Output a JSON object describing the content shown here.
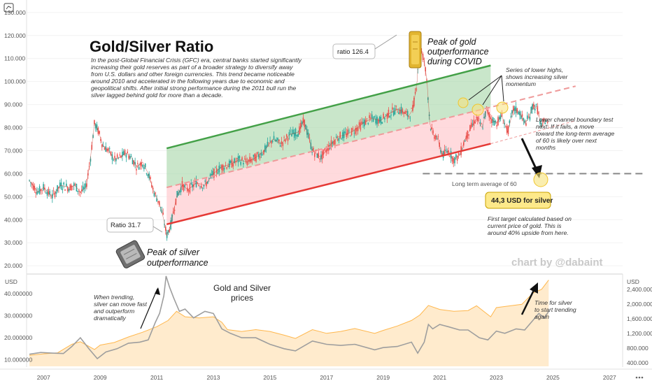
{
  "chart_data": [
    {
      "type": "line",
      "title": "Gold/Silver Ratio",
      "subtitle": "In the post-Global Financial Crisis (GFC) era, central banks started significantly increasing their gold reserves as part of a broader strategy to diversify away from U.S. dollars and other foreign currencies. This trend became noticeable around 2010 and accelerated in the following years due to economic and geopolitical shifts. After initial strong performance during the 2011 bull run the silver lagged behind gold for more than a decade.",
      "subtitle_lines": [
        "In the post-Global Financial Crisis (GFC) era, central banks started significantly",
        "increasing their gold reserves as part of a broader strategy to diversify away",
        "from U.S. dollars and other foreign currencies. This trend became noticeable",
        "around 2010 and accelerated in the following years due to economic and",
        "geopolitical shifts. After initial strong performance during the 2011 bull run the",
        "silver lagged behind gold for more than a decade."
      ],
      "yticks": [
        "130.000",
        "120.000",
        "110.000",
        "100.000",
        "90.000",
        "80.000",
        "70.000",
        "60.000",
        "50.000",
        "40.000",
        "30.000",
        "20.000"
      ],
      "ylim": [
        17,
        133
      ],
      "xlim": [
        2006.4,
        2028.5
      ],
      "x": [
        2006.5,
        2006.8,
        2007.0,
        2007.3,
        2007.6,
        2007.9,
        2008.1,
        2008.3,
        2008.5,
        2008.65,
        2008.8,
        2008.95,
        2009.1,
        2009.3,
        2009.5,
        2009.7,
        2009.9,
        2010.1,
        2010.3,
        2010.5,
        2010.7,
        2010.9,
        2011.1,
        2011.25,
        2011.35,
        2011.5,
        2011.7,
        2011.9,
        2012.1,
        2012.4,
        2012.7,
        2013.0,
        2013.3,
        2013.6,
        2013.9,
        2014.2,
        2014.5,
        2014.8,
        2015.1,
        2015.4,
        2015.7,
        2016.0,
        2016.2,
        2016.5,
        2016.8,
        2017.1,
        2017.4,
        2017.7,
        2018.0,
        2018.3,
        2018.6,
        2018.9,
        2019.2,
        2019.5,
        2019.7,
        2019.9,
        2020.05,
        2020.2,
        2020.28,
        2020.35,
        2020.45,
        2020.55,
        2020.65,
        2020.75,
        2020.9,
        2021.1,
        2021.3,
        2021.5,
        2021.7,
        2021.9,
        2022.1,
        2022.3,
        2022.5,
        2022.65,
        2022.8,
        2023.0,
        2023.2,
        2023.4,
        2023.6,
        2023.8,
        2024.0,
        2024.15,
        2024.3,
        2024.45,
        2024.6,
        2024.75,
        2024.85
      ],
      "y": [
        57,
        52,
        54,
        50,
        55,
        54,
        55,
        52,
        54,
        66,
        82,
        78,
        72,
        70,
        66,
        67,
        69,
        67,
        63,
        65,
        60,
        52,
        47,
        40,
        33,
        38,
        50,
        55,
        53,
        56,
        55,
        60,
        63,
        64,
        66,
        65,
        67,
        70,
        75,
        73,
        77,
        78,
        83,
        70,
        67,
        72,
        76,
        77,
        79,
        82,
        84,
        83,
        86,
        88,
        87,
        85,
        88,
        100,
        120,
        113,
        109,
        100,
        82,
        77,
        76,
        68,
        70,
        66,
        68,
        75,
        80,
        84,
        80,
        88,
        84,
        82,
        85,
        78,
        88,
        87,
        82,
        84,
        90,
        88,
        80,
        84,
        80
      ],
      "channel": {
        "upper": {
          "from": [
            2011.35,
            71
          ],
          "to": [
            2022.8,
            107
          ]
        },
        "mid": {
          "from": [
            2011.35,
            54
          ],
          "to": [
            2025.8,
            98
          ]
        },
        "lower": {
          "from": [
            2011.35,
            38
          ],
          "to": [
            2022.8,
            73
          ]
        },
        "lower_extension": {
          "from": [
            2022.8,
            73
          ],
          "to": [
            2025.8,
            83
          ]
        }
      },
      "reference_line": {
        "y": 60,
        "label": "Long term average of 60"
      },
      "annotations": {
        "ratio_low": "Ratio 31.7",
        "ratio_high": "ratio 126.4",
        "peak_gold_1": "Peak of gold",
        "peak_gold_2": "outperformance",
        "peak_gold_3": "during COVID",
        "peak_silver_1": "Peak of silver",
        "peak_silver_2": "outperformance",
        "lower_highs_1": "Series of lower highs,",
        "lower_highs_2": "shows increasing silver",
        "lower_highs_3": "momentum",
        "lower_test_1": "Lower channel boundary test",
        "lower_test_2": "next. If it fails, a move",
        "lower_test_3": "toward the long-term average",
        "lower_test_4": "of 60 is likely over next",
        "lower_test_5": "months",
        "silver_target": "44,3 USD for silver",
        "first_target_1": "First target calculated based on",
        "first_target_2": "current price of gold. This is",
        "first_target_3": "around 40% upside from here.",
        "credit": "chart by @dabaint"
      }
    },
    {
      "type": "area",
      "title": "Gold and Silver",
      "title_line2": "prices",
      "left_axis_label": "USD",
      "right_axis_label": "USD",
      "left_ticks": [
        "40.000000",
        "30.000000",
        "20.000000",
        "10.000000"
      ],
      "right_ticks": [
        "2,400.000",
        "2,000.000",
        "1,600.000",
        "1,200.000",
        "800.000",
        "400.000"
      ],
      "xticks": [
        "2007",
        "2009",
        "2011",
        "2013",
        "2015",
        "2017",
        "2019",
        "2021",
        "2023",
        "2025",
        "2027"
      ],
      "xlim": [
        2006.4,
        2028.5
      ],
      "series": [
        {
          "name": "Gold",
          "axis": "right",
          "x": [
            2006.5,
            2007.0,
            2007.5,
            2008.0,
            2008.3,
            2008.8,
            2009.0,
            2009.5,
            2010.0,
            2010.5,
            2011.0,
            2011.4,
            2011.7,
            2012.0,
            2012.5,
            2013.0,
            2013.3,
            2013.5,
            2014.0,
            2014.5,
            2015.0,
            2015.5,
            2015.9,
            2016.5,
            2017.0,
            2017.5,
            2018.0,
            2018.7,
            2019.0,
            2019.5,
            2020.0,
            2020.3,
            2020.6,
            2021.0,
            2021.5,
            2022.0,
            2022.3,
            2022.8,
            2023.0,
            2023.5,
            2023.9,
            2024.3,
            2024.6,
            2024.85
          ],
          "y": [
            600,
            640,
            670,
            900,
            970,
            760,
            880,
            950,
            1100,
            1230,
            1380,
            1550,
            1800,
            1650,
            1620,
            1650,
            1500,
            1300,
            1250,
            1300,
            1250,
            1150,
            1060,
            1300,
            1200,
            1250,
            1330,
            1200,
            1280,
            1400,
            1550,
            1700,
            1960,
            1850,
            1800,
            1820,
            1950,
            1650,
            1900,
            1950,
            1990,
            2300,
            2400,
            2650
          ]
        },
        {
          "name": "Silver",
          "axis": "left",
          "x": [
            2006.5,
            2006.9,
            2007.3,
            2007.7,
            2008.0,
            2008.3,
            2008.6,
            2008.9,
            2009.2,
            2009.6,
            2010.0,
            2010.4,
            2010.7,
            2010.95,
            2011.1,
            2011.25,
            2011.33,
            2011.45,
            2011.6,
            2011.8,
            2012.0,
            2012.3,
            2012.7,
            2013.0,
            2013.3,
            2013.6,
            2014.0,
            2014.5,
            2015.0,
            2015.5,
            2015.9,
            2016.5,
            2017.0,
            2017.5,
            2018.0,
            2018.7,
            2019.0,
            2019.5,
            2020.0,
            2020.22,
            2020.45,
            2020.6,
            2020.75,
            2021.0,
            2021.3,
            2021.7,
            2022.0,
            2022.4,
            2022.7,
            2023.0,
            2023.3,
            2023.7,
            2024.0,
            2024.3,
            2024.5,
            2024.7,
            2024.85
          ],
          "y": [
            12.5,
            13.3,
            13,
            12.8,
            16,
            20,
            15,
            10.5,
            13.5,
            15,
            17.5,
            18,
            19,
            27,
            31,
            39,
            48,
            43,
            38,
            32,
            33,
            29,
            32,
            31,
            24,
            22,
            20,
            20,
            17,
            15,
            14,
            18.5,
            17,
            16.5,
            17,
            14.5,
            15.5,
            16,
            18,
            13,
            18,
            26,
            24,
            26,
            25,
            23.5,
            23.5,
            20,
            19,
            23,
            22,
            24,
            23.5,
            28,
            31,
            29,
            32
          ]
        }
      ],
      "annotations": {
        "trending_1": "When trending,",
        "trending_2": "silver can move fast",
        "trending_3": "and outperform",
        "trending_4": "dramatically",
        "time_1": "Time for silver",
        "time_2": "to start trending",
        "time_3": "again"
      }
    }
  ]
}
